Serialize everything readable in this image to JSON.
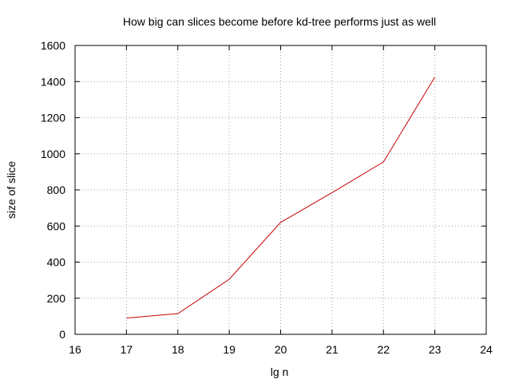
{
  "chart_data": {
    "type": "line",
    "title": "How big can slices become before kd-tree performs just as well",
    "xlabel": "lg n",
    "ylabel": "size of slice",
    "xlim": [
      16,
      24
    ],
    "ylim": [
      0,
      1600
    ],
    "xticks": [
      16,
      17,
      18,
      19,
      20,
      21,
      22,
      23,
      24
    ],
    "yticks": [
      0,
      200,
      400,
      600,
      800,
      1000,
      1200,
      1400,
      1600
    ],
    "grid": true,
    "legend": "none",
    "series": [
      {
        "color": "#cc0000",
        "x": [
          17,
          18,
          19,
          20,
          21,
          22,
          23
        ],
        "y": [
          90,
          115,
          305,
          620,
          785,
          955,
          1425
        ]
      }
    ]
  }
}
